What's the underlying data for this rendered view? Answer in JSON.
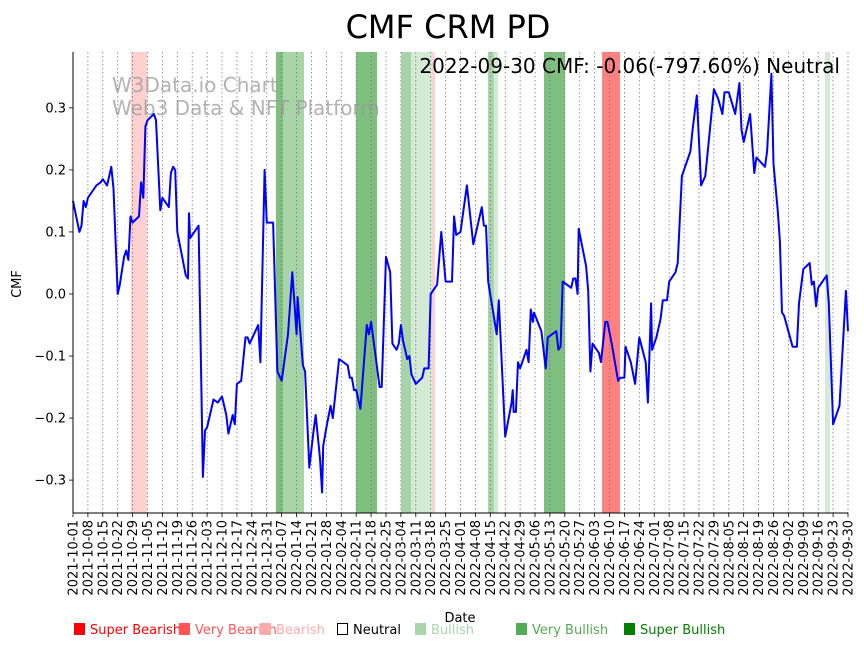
{
  "chart_data": {
    "type": "line",
    "title": "CMF CRM PD",
    "xlabel": "Date",
    "ylabel": "CMF",
    "annotation": "2022-09-30 CMF: -0.06(-797.60%) Neutral",
    "watermark": [
      "W3Data.io Chart",
      "Web3 Data & NFT Platform"
    ],
    "x_start_date": "2021-10-01",
    "xlim_days": [
      0,
      364
    ],
    "ylim": [
      -0.353,
      0.39
    ],
    "yticks": [
      -0.3,
      -0.2,
      -0.1,
      0.0,
      0.1,
      0.2,
      0.3
    ],
    "ytick_labels": [
      "−0.3",
      "−0.2",
      "−0.1",
      "0.0",
      "0.1",
      "0.2",
      "0.3"
    ],
    "xtick_labels": [
      "2021-10-01",
      "2021-10-08",
      "2021-10-15",
      "2021-10-22",
      "2021-10-29",
      "2021-11-05",
      "2021-11-12",
      "2021-11-19",
      "2021-11-26",
      "2021-12-03",
      "2021-12-10",
      "2021-12-17",
      "2021-12-24",
      "2021-12-31",
      "2022-01-07",
      "2022-01-14",
      "2022-01-21",
      "2022-01-28",
      "2022-02-04",
      "2022-02-11",
      "2022-02-18",
      "2022-02-25",
      "2022-03-04",
      "2022-03-11",
      "2022-03-18",
      "2022-03-25",
      "2022-04-01",
      "2022-04-08",
      "2022-04-15",
      "2022-04-22",
      "2022-04-29",
      "2022-05-06",
      "2022-05-13",
      "2022-05-20",
      "2022-05-27",
      "2022-06-03",
      "2022-06-10",
      "2022-06-17",
      "2022-06-24",
      "2022-07-01",
      "2022-07-08",
      "2022-07-15",
      "2022-07-22",
      "2022-07-29",
      "2022-08-05",
      "2022-08-12",
      "2022-08-19",
      "2022-08-26",
      "2022-09-02",
      "2022-09-09",
      "2022-09-16",
      "2022-09-23",
      "2022-09-30"
    ],
    "xtick_step_days": 7,
    "grid": "vertical-dotted",
    "series": [
      {
        "name": "CMF",
        "color": "#0000ff",
        "x_days": [
          0,
          3,
          4,
          5,
          6,
          7,
          9,
          10,
          11,
          13,
          14,
          16,
          18,
          19,
          21,
          22,
          24,
          25,
          26,
          27,
          28,
          31,
          32,
          33,
          34,
          35,
          38,
          39,
          41,
          42,
          45,
          46,
          47,
          48,
          49,
          53,
          54,
          54.5,
          55,
          58,
          59,
          61,
          62,
          63,
          66,
          68,
          70,
          72,
          73,
          75,
          76,
          77,
          79,
          81,
          82,
          83,
          87,
          88,
          90,
          91,
          94,
          96,
          98,
          101,
          103,
          105,
          105.5,
          108,
          109,
          111,
          113,
          114,
          116,
          117,
          117.5,
          119,
          121,
          122,
          125,
          127,
          129,
          130,
          131,
          132,
          133,
          135,
          138,
          139,
          140,
          144,
          145,
          147,
          149,
          150,
          152,
          153,
          154,
          155,
          157,
          158,
          159,
          161,
          164,
          165,
          167,
          168,
          171,
          173,
          175,
          178,
          179,
          180,
          182,
          185,
          188,
          192,
          193,
          194,
          195,
          199,
          200,
          203,
          206,
          206.5,
          207,
          208,
          209,
          210,
          213,
          214,
          215,
          216,
          216.5,
          220,
          222,
          223,
          227,
          228,
          229,
          230,
          234,
          235,
          236,
          237,
          237.5,
          241,
          242,
          243,
          244,
          247,
          248,
          250,
          251,
          253,
          256,
          257,
          259,
          259.5,
          262,
          264,
          266,
          269,
          270,
          271.5,
          272,
          274,
          276,
          277,
          279,
          280,
          283,
          284,
          286,
          289,
          290,
          291,
          293,
          295,
          297,
          299,
          301,
          303,
          305,
          306,
          308,
          311,
          313,
          314,
          315,
          318,
          320,
          321,
          325,
          326,
          328,
          329,
          331,
          332,
          333,
          334,
          338,
          340,
          341,
          343,
          346,
          347,
          348,
          349,
          350,
          354,
          355,
          357,
          360,
          363,
          364
        ],
        "values": [
          0.15,
          0.1,
          0.11,
          0.15,
          0.14,
          0.155,
          0.165,
          0.17,
          0.175,
          0.18,
          0.185,
          0.175,
          0.205,
          0.17,
          0.0,
          0.015,
          0.06,
          0.07,
          0.055,
          0.125,
          0.115,
          0.125,
          0.18,
          0.155,
          0.27,
          0.28,
          0.29,
          0.28,
          0.135,
          0.155,
          0.14,
          0.195,
          0.205,
          0.2,
          0.1,
          0.03,
          0.025,
          0.13,
          0.09,
          0.105,
          0.11,
          -0.295,
          -0.22,
          -0.215,
          -0.17,
          -0.175,
          -0.165,
          -0.195,
          -0.225,
          -0.195,
          -0.21,
          -0.145,
          -0.14,
          -0.07,
          -0.07,
          -0.08,
          -0.05,
          -0.11,
          0.2,
          0.115,
          0.115,
          -0.125,
          -0.14,
          -0.065,
          0.035,
          -0.065,
          -0.005,
          -0.115,
          -0.125,
          -0.28,
          -0.22,
          -0.195,
          -0.265,
          -0.32,
          -0.245,
          -0.215,
          -0.18,
          -0.2,
          -0.105,
          -0.11,
          -0.115,
          -0.135,
          -0.135,
          -0.155,
          -0.155,
          -0.185,
          -0.05,
          -0.065,
          -0.045,
          -0.15,
          -0.15,
          0.06,
          0.035,
          -0.08,
          -0.09,
          -0.08,
          -0.05,
          -0.075,
          -0.105,
          -0.1,
          -0.13,
          -0.145,
          -0.135,
          -0.12,
          -0.12,
          0.0,
          0.015,
          0.1,
          0.02,
          0.02,
          0.125,
          0.095,
          0.1,
          0.175,
          0.08,
          0.14,
          0.11,
          0.11,
          0.02,
          -0.065,
          -0.01,
          -0.23,
          -0.175,
          -0.155,
          -0.19,
          -0.19,
          -0.11,
          -0.12,
          -0.09,
          -0.11,
          -0.025,
          -0.045,
          -0.03,
          -0.06,
          -0.12,
          -0.07,
          -0.06,
          -0.09,
          -0.085,
          0.02,
          0.01,
          0.025,
          0.025,
          0.0,
          0.105,
          0.045,
          0.005,
          -0.125,
          -0.08,
          -0.095,
          -0.11,
          -0.045,
          -0.045,
          -0.08,
          -0.14,
          -0.135,
          -0.135,
          -0.085,
          -0.11,
          -0.145,
          -0.07,
          -0.11,
          -0.175,
          -0.015,
          -0.09,
          -0.07,
          -0.04,
          -0.01,
          -0.01,
          0.02,
          0.035,
          0.05,
          0.19,
          0.22,
          0.23,
          0.265,
          0.32,
          0.175,
          0.19,
          0.26,
          0.33,
          0.315,
          0.29,
          0.325,
          0.325,
          0.29,
          0.34,
          0.265,
          0.245,
          0.29,
          0.195,
          0.22,
          0.205,
          0.23,
          0.355,
          0.21,
          0.135,
          0.085,
          -0.03,
          -0.035,
          -0.085,
          -0.085,
          -0.015,
          0.04,
          0.05,
          0.015,
          0.02,
          -0.02,
          0.01,
          0.03,
          -0.015,
          -0.21,
          -0.18,
          0.005,
          -0.06
        ]
      }
    ],
    "bands": [
      {
        "start": 27.2,
        "end": 34.8,
        "color": "#ffd0d0"
      },
      {
        "start": 95.3,
        "end": 98.6,
        "color": "#7fbf7f"
      },
      {
        "start": 98.6,
        "end": 108.5,
        "color": "#a8d5a8"
      },
      {
        "start": 132.9,
        "end": 142.8,
        "color": "#7fbf7f"
      },
      {
        "start": 154.1,
        "end": 158.8,
        "color": "#a8d5a8"
      },
      {
        "start": 158.8,
        "end": 168.6,
        "color": "#d4ead4"
      },
      {
        "start": 168.6,
        "end": 170.0,
        "color": "#ffd0d0"
      },
      {
        "start": 194.9,
        "end": 197.7,
        "color": "#a8d5a8"
      },
      {
        "start": 197.7,
        "end": 199.6,
        "color": "#d4ead4"
      },
      {
        "start": 221.2,
        "end": 231.1,
        "color": "#7fbf7f"
      },
      {
        "start": 248.5,
        "end": 256.9,
        "color": "#ff8080"
      },
      {
        "start": 353.2,
        "end": 355.6,
        "color": "#d4ead4"
      }
    ],
    "legend": [
      {
        "label": "Super Bearish",
        "color": "#ff0000",
        "text_color": "#ff0000"
      },
      {
        "label": "Very Bearish",
        "color": "#ff5555",
        "text_color": "#ff5555"
      },
      {
        "label": "Bearish",
        "color": "#ffaaaa",
        "text_color": "#ffaaaa"
      },
      {
        "label": "Neutral",
        "color": "none",
        "text_color": "#000000"
      },
      {
        "label": "Bullish",
        "color": "#aad5aa",
        "text_color": "#aad5aa"
      },
      {
        "label": "Very Bullish",
        "color": "#55aa55",
        "text_color": "#55aa55"
      },
      {
        "label": "Super Bullish",
        "color": "#008000",
        "text_color": "#008000"
      }
    ],
    "legend_placement": "bottom"
  }
}
